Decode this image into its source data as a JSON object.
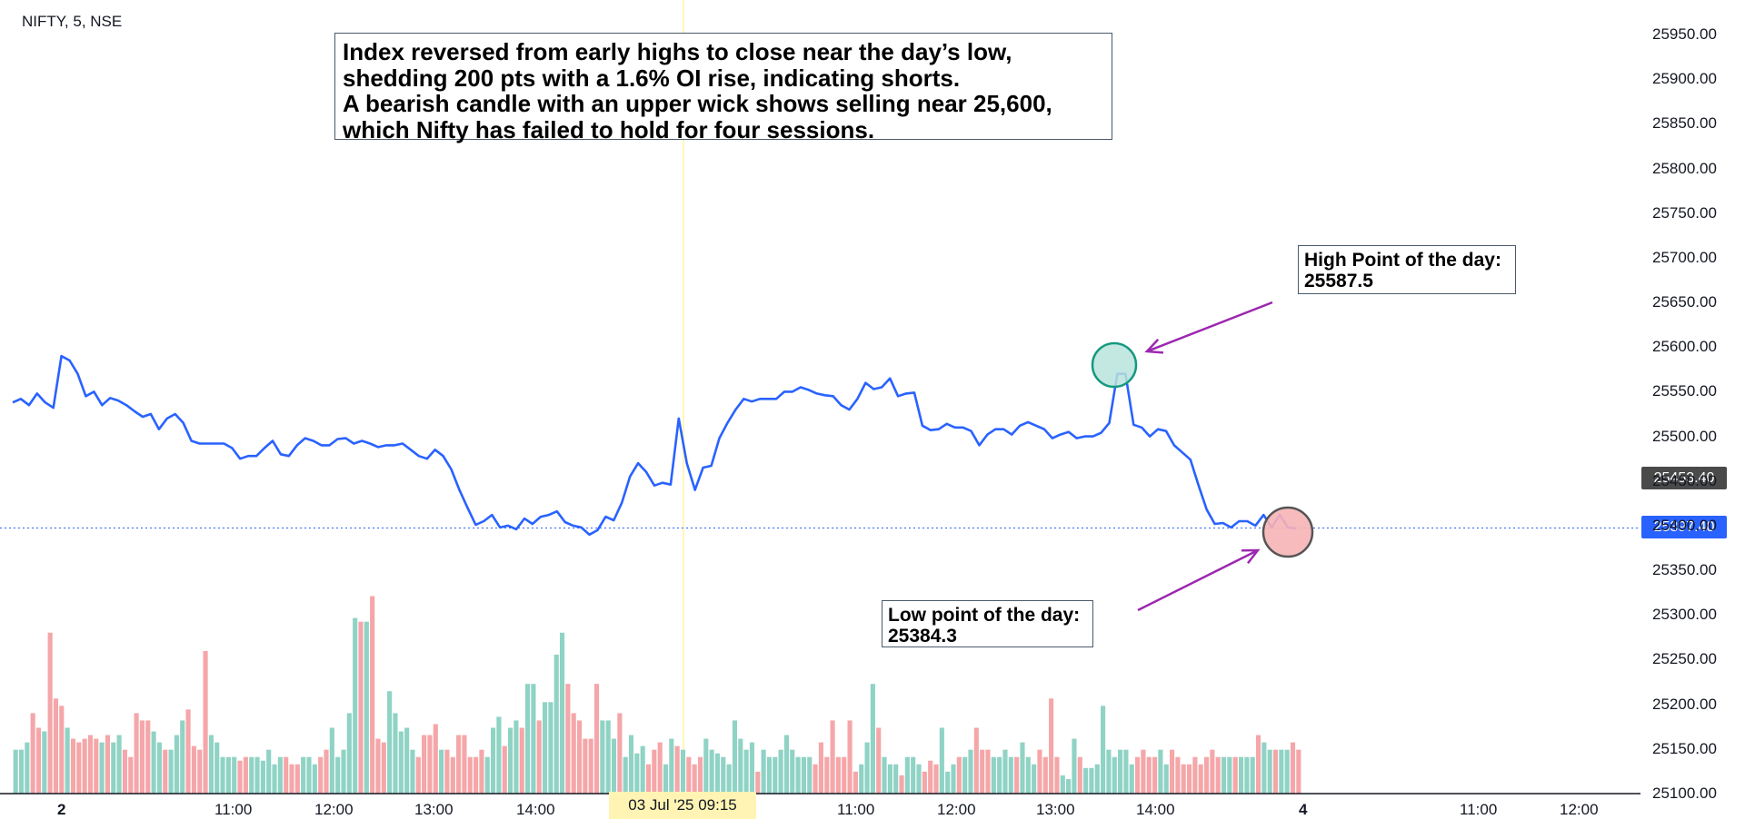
{
  "symbol": "NIFTY, 5, NSE",
  "annotations": {
    "main_lines": [
      "Index reversed from early highs to close near the day’s low,",
      "shedding 200 pts with a 1.6% OI rise, indicating shorts.",
      "A bearish candle with an upper wick shows selling near 25,600,",
      "which Nifty has failed to hold for four sessions."
    ],
    "high_label": "High Point of the day:",
    "high_value": "25587.5",
    "low_label": "Low point of the day:",
    "low_value": "25384.3"
  },
  "price_tags": {
    "prev": "25453.40",
    "last": "25397.40"
  },
  "x_date_tag": "03 Jul '25   09:15",
  "colors": {
    "line": "#2962ff",
    "vol_up": "#8fd3c5",
    "vol_down": "#f5a6a9",
    "high_marker": "#b9e3dc",
    "low_marker": "#f7b4b6",
    "arrow": "#9c27b0"
  },
  "chart_data": {
    "type": "line",
    "y_ticks": [
      "25950.00",
      "25900.00",
      "25850.00",
      "25800.00",
      "25750.00",
      "25700.00",
      "25650.00",
      "25600.00",
      "25550.00",
      "25500.00",
      "25450.00",
      "25400.00",
      "25350.00",
      "25300.00",
      "25250.00",
      "25200.00",
      "25150.00",
      "25100.00"
    ],
    "ylim": [
      25100,
      25975
    ],
    "x_ticks": [
      "2",
      "11:00",
      "12:00",
      "13:00",
      "14:00",
      "11:00",
      "12:00",
      "13:00",
      "14:00",
      "4",
      "11:00",
      "12:00"
    ],
    "last_price": 25397.4,
    "series": [
      {
        "values": [
          25538,
          25542,
          25535,
          25548,
          25538,
          25532,
          25590,
          25585,
          25570,
          25545,
          25550,
          25535,
          25543,
          25540,
          25535,
          25528,
          25522,
          25525,
          25508,
          25520,
          25525,
          25515,
          25495,
          25492,
          25492,
          25492,
          25492,
          25487,
          25475,
          25478,
          25478,
          25487,
          25495,
          25480,
          25478,
          25490,
          25498,
          25495,
          25490,
          25490,
          25497,
          25498,
          25492,
          25495,
          25492,
          25488,
          25490,
          25490,
          25492,
          25485,
          25478,
          25475,
          25485,
          25478,
          25463,
          25440,
          25420,
          25401,
          25405,
          25412,
          25398,
          25400,
          25396,
          25408,
          25402,
          25410,
          25412,
          25416,
          25404,
          25400,
          25398,
          25390,
          25395,
          25410,
          25406,
          25426,
          25455,
          25470,
          25460,
          25445,
          25448,
          25446,
          25520,
          25470,
          25440,
          25465,
          25467,
          25498,
          25515,
          25530,
          25542,
          25539,
          25542,
          25542,
          25542,
          25550,
          25550,
          25555,
          25552,
          25548,
          25546,
          25545,
          25535,
          25530,
          25542,
          25560,
          25553,
          25555,
          25565,
          25545,
          25548,
          25549,
          25512,
          25507,
          25508,
          25514,
          25510,
          25510,
          25506,
          25490,
          25502,
          25508,
          25508,
          25502,
          25512,
          25516,
          25512,
          25508,
          25498,
          25502,
          25505,
          25498,
          25500,
          25500,
          25504,
          25515,
          25570,
          25570,
          25513,
          25510,
          25500,
          25508,
          25506,
          25490,
          25482,
          25474,
          25445,
          25418,
          25402,
          25403,
          25398,
          25405,
          25405,
          25400,
          25412,
          25398,
          25412,
          25398,
          25397
        ]
      }
    ],
    "volume": [
      12,
      12,
      14,
      22,
      18,
      17,
      44,
      26,
      24,
      18,
      15,
      14,
      15,
      16,
      15,
      14,
      16,
      14,
      16,
      12,
      10,
      22,
      20,
      20,
      17,
      14,
      12,
      12,
      16,
      20,
      23,
      13,
      12,
      39,
      16,
      14,
      10,
      10,
      10,
      9,
      10,
      10,
      10,
      9,
      12,
      8,
      10,
      10,
      8,
      8,
      10,
      10,
      8,
      10,
      12,
      18,
      10,
      12,
      22,
      48,
      47,
      47,
      54,
      15,
      14,
      28,
      22,
      17,
      18,
      12,
      10,
      16,
      16,
      19,
      12,
      12,
      10,
      16,
      16,
      10,
      10,
      12,
      10,
      18,
      21,
      13,
      18,
      20,
      18,
      30,
      30,
      20,
      25,
      25,
      38,
      44,
      30,
      22,
      20,
      15,
      15,
      30,
      20,
      20,
      15,
      22,
      10,
      16,
      11,
      13,
      8,
      12,
      14,
      8,
      15,
      13,
      12,
      10,
      8,
      10,
      15,
      12,
      11,
      10,
      8,
      20,
      15,
      12,
      14,
      6,
      12,
      10,
      10,
      12,
      16,
      12,
      10,
      10,
      10,
      8,
      14,
      10,
      20,
      10,
      10,
      20,
      6,
      8,
      14,
      30,
      18,
      10,
      8,
      8,
      5,
      10,
      10,
      8,
      6,
      9,
      8,
      18,
      6,
      8,
      10,
      10,
      12,
      18,
      12,
      12,
      10,
      10,
      12,
      10,
      10,
      14,
      10,
      8,
      12,
      10,
      26,
      10,
      5,
      4,
      15,
      10,
      7,
      7,
      8,
      24,
      12,
      10,
      12,
      12,
      8,
      10,
      12,
      10,
      10,
      12,
      8,
      12,
      10,
      8,
      8,
      10,
      8,
      10,
      12,
      10,
      10,
      10,
      10,
      10,
      10,
      10,
      16,
      14,
      12,
      12,
      12,
      12,
      14,
      12
    ],
    "volume_colors": "alternating by price change"
  }
}
